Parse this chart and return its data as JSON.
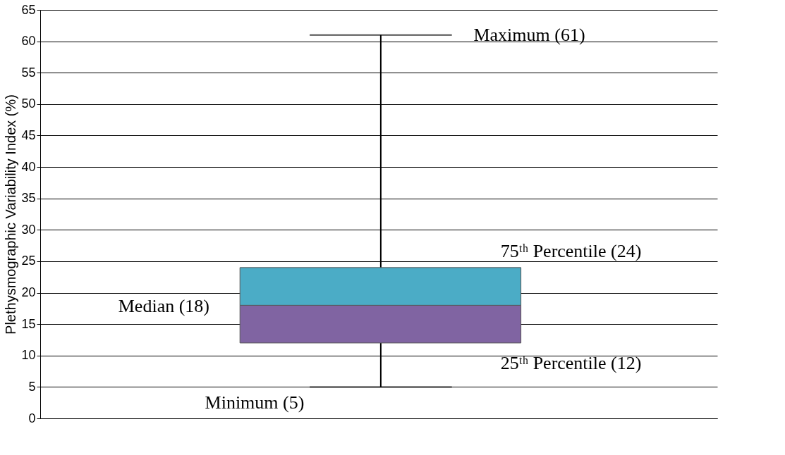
{
  "chart_data": {
    "type": "box",
    "ylabel": "Plethysmographic  Variability Index  (%)",
    "categories": [
      null
    ],
    "colors": [
      "#4bacc6"
    ],
    "series": [
      {
        "color": "#8064a2",
        "boxes": [
          {
            "low": 5,
            "q1": 12,
            "median": 18,
            "q3": 24,
            "high": 61
          }
        ]
      }
    ],
    "ylim": [
      0,
      65
    ],
    "yticks": [
      0,
      5,
      10,
      15,
      20,
      25,
      30,
      35,
      40,
      45,
      50,
      55,
      60,
      65
    ],
    "grid": "y",
    "annotations": [
      "Maximum (61)",
      "75ᵗʰ Percentile (24)",
      "Median (18)",
      "25ᵗʰ Percentile (12)",
      "Minimum (5)"
    ]
  }
}
